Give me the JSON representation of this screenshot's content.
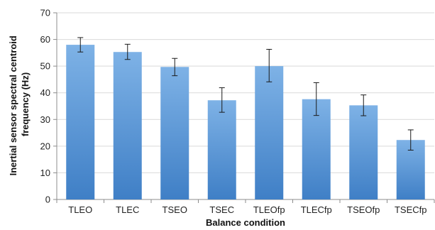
{
  "chart_data": {
    "type": "bar",
    "title": "",
    "xlabel": "Balance condition",
    "ylabel": "Inertial sensor spectral centroid frequency (Hz)",
    "ylabel_lines": [
      "Inertial sensor spectral centroid",
      "frequency (Hz)"
    ],
    "ylim": [
      0,
      70
    ],
    "yticks": [
      0,
      10,
      20,
      30,
      40,
      50,
      60,
      70
    ],
    "grid": true,
    "legend": "none",
    "categories": [
      "TLEO",
      "TLEC",
      "TSEO",
      "TSEC",
      "TLEOfp",
      "TLECfp",
      "TSEOfp",
      "TSECfp"
    ],
    "values": [
      58,
      55.3,
      49.7,
      37.2,
      50.0,
      37.6,
      35.3,
      22.3
    ],
    "error_low": [
      55.3,
      52.5,
      46.4,
      32.7,
      44.1,
      31.5,
      31.4,
      18.5
    ],
    "error_high": [
      60.7,
      58.2,
      52.9,
      41.9,
      56.3,
      43.8,
      39.2,
      26.1
    ],
    "colors": {
      "bar_top": "#7eb2e6",
      "bar_bottom": "#3f7fc6",
      "grid": "#d9d9d9",
      "axis": "#8c8c8c"
    }
  }
}
